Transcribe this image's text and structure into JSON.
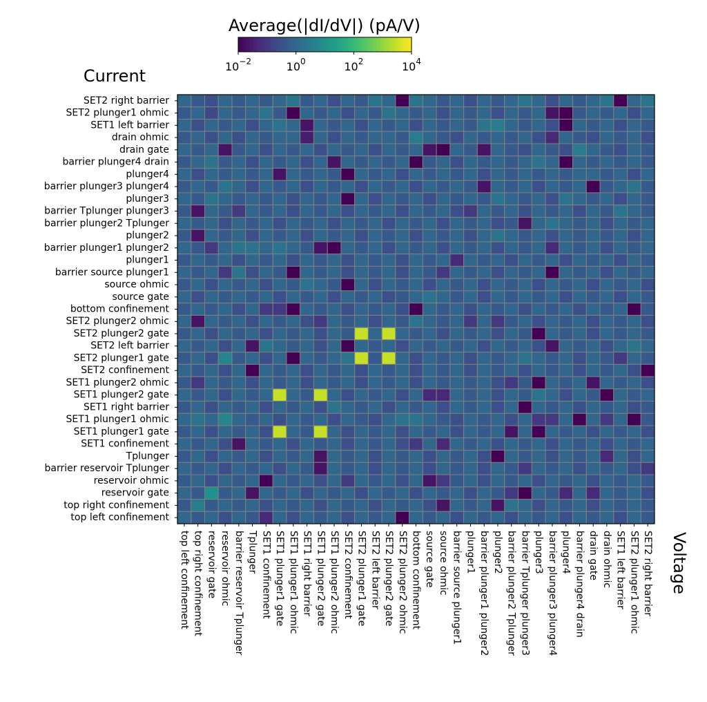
{
  "chart_data": {
    "type": "heatmap",
    "title": "Average(|dI/dV|) (pA/V)",
    "x_label": "Voltage",
    "y_label": "Current",
    "colormap": "viridis",
    "log_scale": true,
    "clim": [
      0.01,
      10000
    ],
    "cticks": [
      {
        "value": 0.01,
        "label": "10^-2"
      },
      {
        "value": 1,
        "label": "10^0"
      },
      {
        "value": 100,
        "label": "10^2"
      },
      {
        "value": 10000,
        "label": "10^4"
      }
    ],
    "x_categories": [
      "top left confinement",
      "top right confinement",
      "reservoir gate",
      "reservoir ohmic",
      "barrier reservoir Tplunger",
      "Tplunger",
      "SET1 confinement",
      "SET1 plunger1 gate",
      "SET1 plunger1 ohmic",
      "SET1 right barrier",
      "SET1 plunger2 gate",
      "SET1 plunger2 ohmic",
      "SET2 confinement",
      "SET2 plunger1 gate",
      "SET2 left barrier",
      "SET2 plunger2 gate",
      "SET2 plunger2 ohmic",
      "bottom confinement",
      "source gate",
      "source ohmic",
      "barrier source plunger1",
      "plunger1",
      "barrier plunger1 plunger2",
      "plunger2",
      "barrier plunger2 Tplunger",
      "barrier Tplunger plunger3",
      "plunger3",
      "barrier plunger3 plunger4",
      "plunger4",
      "barrier plunger4 drain",
      "drain gate",
      "drain ohmic",
      "SET1 left barrier",
      "SET2 plunger1 ohmic",
      "SET2 right barrier"
    ],
    "y_categories": [
      "SET2 right barrier",
      "SET2 plunger1 ohmic",
      "SET1 left barrier",
      "drain ohmic",
      "drain gate",
      "barrier plunger4 drain",
      "plunger4",
      "barrier plunger3 plunger4",
      "plunger3",
      "barrier Tplunger plunger3",
      "barrier plunger2 Tplunger",
      "plunger2",
      "barrier plunger1 plunger2",
      "plunger1",
      "barrier source plunger1",
      "source ohmic",
      "source gate",
      "bottom confinement",
      "SET2 plunger2 ohmic",
      "SET2 plunger2 gate",
      "SET2 left barrier",
      "SET2 plunger1 gate",
      "SET2 confinement",
      "SET1 plunger2 ohmic",
      "SET1 plunger2 gate",
      "SET1 right barrier",
      "SET1 plunger1 ohmic",
      "SET1 plunger1 gate",
      "SET1 confinement",
      "Tplunger",
      "barrier reservoir Tplunger",
      "reservoir ohmic",
      "reservoir gate",
      "top right confinement",
      "top left confinement"
    ],
    "values": [
      [
        1,
        0.5,
        0.3,
        1,
        0.5,
        1,
        0.5,
        1,
        2,
        0.5,
        1,
        0.3,
        1,
        0.5,
        2,
        1,
        0.01,
        2,
        1,
        0.5,
        1,
        0.3,
        1,
        0.5,
        1,
        2,
        1,
        0.3,
        1,
        0.5,
        1,
        2,
        0.01,
        1,
        2
      ],
      [
        0.5,
        1,
        0.2,
        1,
        0.5,
        1,
        2,
        0.5,
        0.01,
        1,
        0.5,
        1,
        0.3,
        1,
        0.5,
        2,
        1,
        0.5,
        1,
        0.3,
        1,
        0.5,
        1,
        0.3,
        1,
        0.5,
        1,
        0.02,
        0.01,
        0.5,
        1,
        0.5,
        1,
        0.3,
        1
      ],
      [
        1,
        0.3,
        1,
        0.5,
        1,
        0.3,
        1,
        2,
        1,
        0.02,
        1,
        0.5,
        1,
        0.3,
        1,
        0.5,
        1,
        0.3,
        1,
        0.5,
        1,
        0.5,
        2,
        3,
        1,
        0.5,
        1,
        0.3,
        0.01,
        1,
        0.5,
        1,
        0.3,
        1,
        0.5
      ],
      [
        0.5,
        1,
        0.3,
        1,
        0.3,
        1,
        0.5,
        1,
        1,
        0.03,
        1,
        0.3,
        1,
        0.5,
        1,
        1,
        0.5,
        3,
        1,
        0.5,
        0.3,
        1,
        0.5,
        1,
        0.5,
        1,
        0.3,
        0.05,
        1,
        0.5,
        0.3,
        1,
        0.5,
        1,
        0.3
      ],
      [
        1,
        0.5,
        1,
        0.02,
        0.5,
        1,
        0.3,
        1,
        0.5,
        1,
        0.3,
        1,
        0.5,
        1,
        0.3,
        1,
        0.5,
        1,
        0.02,
        0.01,
        1,
        0.5,
        0.02,
        1,
        0.5,
        0.3,
        1,
        0.5,
        0.3,
        3,
        1,
        0.5,
        0.3,
        1,
        0.5
      ],
      [
        0.5,
        1,
        2,
        0.5,
        1,
        0.3,
        1,
        0.5,
        1,
        0.3,
        1,
        0.02,
        1,
        0.5,
        1,
        0.5,
        1,
        0.01,
        0.5,
        1,
        0.3,
        1,
        0.5,
        1,
        0.5,
        1,
        2,
        1,
        0.01,
        1,
        0.5,
        1,
        0.5,
        1,
        0.5
      ],
      [
        1,
        0.3,
        1,
        0.5,
        1,
        0.5,
        1,
        0.02,
        1,
        0.5,
        1,
        0.5,
        0.01,
        1,
        0.5,
        1,
        0.3,
        1,
        0.5,
        1,
        0.5,
        1,
        0.3,
        1,
        0.5,
        1,
        0.5,
        1,
        0.5,
        1,
        1,
        0.5,
        1,
        0.3,
        1
      ],
      [
        0.5,
        1,
        0.5,
        2,
        1,
        0.3,
        1,
        0.5,
        1,
        0.3,
        1,
        0.5,
        1,
        0.3,
        1,
        0.5,
        1,
        0.3,
        1,
        0.5,
        1,
        0.5,
        0.02,
        1,
        0.5,
        1,
        0.3,
        1,
        0.5,
        1,
        0.01,
        0.5,
        1,
        2,
        0.5
      ],
      [
        1,
        0.5,
        2,
        1,
        0.5,
        1,
        0.5,
        1,
        0.3,
        1,
        0.5,
        1,
        0.01,
        1,
        0.3,
        1,
        0.5,
        1,
        0.3,
        1,
        0.5,
        1,
        0.5,
        2,
        1,
        0.5,
        1,
        0.3,
        2,
        1,
        0.5,
        1,
        0.3,
        1,
        0.5
      ],
      [
        0.5,
        0.02,
        1,
        0.5,
        0.1,
        1,
        0.5,
        1,
        0.3,
        1,
        0.5,
        1,
        0.3,
        1,
        0.5,
        1,
        0.3,
        1,
        0.5,
        1,
        0.3,
        0.1,
        1,
        0.5,
        1,
        0.3,
        1,
        0.5,
        1,
        0.3,
        1,
        0.5,
        2,
        1,
        0.5
      ],
      [
        1,
        0.5,
        1,
        0.3,
        1,
        0.5,
        1,
        0.3,
        1,
        0.5,
        1,
        0.3,
        1,
        0.5,
        1,
        0.3,
        1,
        0.5,
        1,
        0.3,
        1,
        0.5,
        1,
        0.3,
        0.5,
        0.02,
        1,
        2,
        1,
        0.5,
        1,
        0.3,
        1,
        0.5,
        1
      ],
      [
        0.5,
        0.02,
        1,
        0.5,
        1,
        0.3,
        1,
        0.5,
        1,
        0.3,
        1,
        0.5,
        1,
        0.3,
        1,
        0.5,
        1,
        0.3,
        1,
        0.5,
        1,
        0.3,
        1,
        2,
        1,
        0.5,
        1,
        0.3,
        1,
        0.5,
        1,
        0.5,
        1,
        0.3,
        1
      ],
      [
        1,
        0.5,
        0.1,
        1,
        2,
        2,
        1,
        2,
        1,
        0.5,
        0.02,
        0.01,
        1,
        0.5,
        1,
        0.3,
        1,
        0.5,
        1,
        0.3,
        1,
        0.5,
        1,
        0.3,
        1,
        0.5,
        1,
        0.05,
        1,
        0.5,
        1,
        0.3,
        1,
        0.5,
        1
      ],
      [
        0.5,
        1,
        0.5,
        1,
        0.3,
        1,
        0.5,
        1,
        0.3,
        1,
        0.5,
        1,
        0.3,
        1,
        0.5,
        1,
        0.3,
        1,
        0.5,
        1,
        0.05,
        1,
        0.5,
        1,
        0.3,
        1,
        0.5,
        1,
        0.3,
        1,
        0.5,
        1,
        0.3,
        1,
        0.5
      ],
      [
        1,
        0.5,
        1,
        0.1,
        2,
        0.3,
        1,
        0.5,
        0.01,
        1,
        0.5,
        1,
        0.3,
        1,
        0.5,
        1,
        0.3,
        1,
        0.5,
        0.1,
        1,
        0.5,
        1,
        0.3,
        1,
        0.5,
        1,
        0.01,
        1,
        0.5,
        1,
        0.3,
        1,
        0.5,
        1
      ],
      [
        0.5,
        1,
        0.3,
        1,
        0.5,
        1,
        0.3,
        1,
        0.5,
        2,
        1,
        0.5,
        0.01,
        1,
        0.3,
        1,
        0.5,
        1,
        0.3,
        1,
        0.5,
        1,
        0.3,
        1,
        0.5,
        1,
        0.3,
        1,
        0.5,
        1,
        0.3,
        1,
        0.5,
        1,
        0.3
      ],
      [
        1,
        0.3,
        1,
        0.5,
        1,
        0.5,
        1,
        0.3,
        1,
        0.5,
        1,
        0.3,
        1,
        0.5,
        1,
        0.3,
        0.5,
        1,
        2,
        1,
        0.5,
        1,
        0.3,
        1,
        0.5,
        1,
        0.5,
        1,
        0.3,
        1,
        0.5,
        1,
        0.3,
        1,
        0.5
      ],
      [
        0.5,
        1,
        0.5,
        1,
        0.3,
        1,
        0.1,
        0.1,
        0.01,
        1,
        0.5,
        1,
        0.3,
        1,
        0.5,
        1,
        0.3,
        0.01,
        1,
        0.5,
        1,
        0.3,
        1,
        0.5,
        1,
        0.3,
        1,
        0.5,
        1,
        0.3,
        1,
        0.5,
        1,
        0.01,
        0.5
      ],
      [
        1,
        0.02,
        1,
        0.5,
        1,
        0.3,
        1,
        0.5,
        1,
        0.3,
        0.1,
        1,
        0.5,
        1,
        0.3,
        1,
        0.5,
        2,
        1,
        0.5,
        1,
        0.1,
        1,
        0.1,
        0.5,
        1,
        0.3,
        1,
        0.5,
        1,
        0.3,
        1,
        0.5,
        1,
        0.3
      ],
      [
        0.5,
        1,
        0.3,
        1,
        0.5,
        1,
        0.3,
        1,
        0.5,
        1,
        0.3,
        1,
        0.5,
        3000,
        1,
        3000,
        1,
        0.5,
        1,
        0.3,
        1,
        0.5,
        1,
        0.3,
        1,
        0.5,
        0.01,
        1,
        0.5,
        1,
        0.3,
        1,
        0.5,
        1,
        0.5
      ],
      [
        1,
        0.5,
        1,
        0.3,
        1,
        0.02,
        2,
        1,
        0.5,
        1,
        0.3,
        1,
        0.01,
        1,
        0.5,
        1,
        0.3,
        1,
        0.5,
        1,
        0.5,
        1,
        0.3,
        1,
        0.5,
        1,
        0.3,
        0.02,
        1,
        0.5,
        1,
        0.3,
        1,
        2,
        1
      ],
      [
        0.5,
        1,
        0.3,
        5,
        0.5,
        1,
        0.3,
        1,
        0.01,
        1,
        0.5,
        1,
        2,
        3000,
        0.5,
        3000,
        1,
        0.3,
        1,
        0.5,
        1,
        0.3,
        1,
        0.5,
        1,
        2,
        1,
        0.5,
        1,
        0.3,
        1,
        0.5,
        0.1,
        1,
        0.5
      ],
      [
        1,
        0.5,
        1,
        0.3,
        1,
        0.01,
        1,
        0.5,
        1,
        0.3,
        1,
        0.5,
        1,
        0.3,
        1,
        0.5,
        1,
        0.3,
        1,
        0.5,
        1,
        0.3,
        1,
        0.5,
        1,
        0.3,
        1,
        0.5,
        1,
        0.3,
        1,
        0.5,
        1,
        0.3,
        0.01
      ],
      [
        0.5,
        0.1,
        1,
        0.5,
        1,
        0.3,
        1,
        0.5,
        1,
        0.3,
        1,
        0.5,
        1,
        0.3,
        1,
        0.5,
        1,
        0.3,
        1,
        0.5,
        1,
        0.5,
        1,
        0.3,
        0.1,
        0.5,
        0.01,
        1,
        0.5,
        1,
        0.02,
        1,
        0.5,
        1,
        0.3
      ],
      [
        1,
        0.5,
        1,
        0.3,
        1,
        0.5,
        1,
        3000,
        1,
        0.5,
        3000,
        1,
        0.3,
        1,
        0.5,
        1,
        0.3,
        1,
        0.05,
        0.05,
        1,
        0.5,
        1,
        0.3,
        1,
        0.5,
        2,
        1,
        0.3,
        1,
        0.5,
        0.01,
        1,
        0.5,
        1
      ],
      [
        0.5,
        1,
        0.3,
        1,
        0.5,
        1,
        0.3,
        1,
        0.5,
        1,
        0.3,
        2,
        1,
        0.5,
        1,
        0.3,
        1,
        0.5,
        1,
        0.3,
        1,
        0.5,
        1,
        0.3,
        1,
        0.01,
        1,
        0.5,
        1,
        0.3,
        1,
        0.5,
        1,
        0.3,
        0.5
      ],
      [
        1,
        2,
        1,
        5,
        1,
        0.5,
        1,
        0.3,
        1,
        0.5,
        1,
        0.3,
        1,
        0.5,
        0.3,
        1,
        2,
        2,
        1,
        0.5,
        0.3,
        1,
        0.5,
        1,
        0.3,
        1,
        0.1,
        0.1,
        1,
        0.01,
        1,
        0.1,
        1,
        0.01,
        0.5
      ],
      [
        0.5,
        1,
        0.3,
        1,
        0.5,
        1,
        0.3,
        3000,
        1,
        0.5,
        3000,
        1,
        0.3,
        1,
        0.5,
        1,
        0.3,
        1,
        0.5,
        1,
        0.3,
        1,
        0.5,
        1,
        0.02,
        1,
        0.01,
        1,
        0.5,
        1,
        0.3,
        1,
        0.5,
        1,
        0.3
      ],
      [
        1,
        0.5,
        1,
        0.3,
        0.02,
        1,
        0.5,
        1,
        0.3,
        1,
        0.5,
        1,
        0.3,
        1,
        0.5,
        1,
        0.3,
        0.1,
        1,
        0.05,
        1,
        0.5,
        1,
        0.3,
        1,
        0.5,
        1,
        0.3,
        1,
        0.5,
        1,
        0.3,
        1,
        0.5,
        1
      ],
      [
        0.5,
        1,
        0.3,
        1,
        0.5,
        1,
        0.3,
        1,
        0.5,
        1,
        0.02,
        1,
        0.5,
        1,
        0.3,
        1,
        0.5,
        1,
        0.3,
        1,
        0.5,
        1,
        0.3,
        0.01,
        1,
        0.5,
        1,
        0.3,
        1,
        0.5,
        1,
        0.05,
        1,
        0.3,
        1
      ],
      [
        1,
        0.5,
        1,
        0.3,
        1,
        0.5,
        1,
        0.3,
        1,
        0.5,
        0.02,
        1,
        0.5,
        1,
        0.3,
        1,
        0.5,
        1,
        0.3,
        1,
        0.5,
        1,
        0.3,
        1,
        0.5,
        0.1,
        1,
        0.5,
        1,
        0.3,
        1,
        0.5,
        1,
        0.3,
        0.1
      ],
      [
        0.5,
        1,
        0.3,
        1,
        0.5,
        1,
        0.01,
        1,
        0.5,
        1,
        0.3,
        1,
        0.1,
        1,
        0.5,
        1,
        0.3,
        1,
        0.02,
        0.1,
        0.5,
        1,
        0.3,
        1,
        0.5,
        1,
        0.3,
        1,
        0.5,
        1,
        0.3,
        1,
        0.5,
        1,
        0.5
      ],
      [
        1,
        0.5,
        10,
        0.5,
        1,
        0.02,
        1,
        0.5,
        1,
        0.3,
        1,
        0.5,
        1,
        0.3,
        1,
        0.5,
        1,
        0.3,
        1,
        0.5,
        1,
        0.3,
        1,
        0.5,
        0.1,
        0.01,
        1,
        0.5,
        0.05,
        1,
        0.05,
        1,
        0.5,
        1,
        0.3
      ],
      [
        0.5,
        3,
        0.5,
        1,
        0.5,
        1,
        0.3,
        1,
        0.5,
        1,
        0.3,
        1,
        0.5,
        1,
        0.3,
        1,
        0.5,
        1,
        0.3,
        0.02,
        1,
        0.5,
        1,
        0.02,
        2,
        1,
        0.3,
        1,
        0.5,
        1,
        0.3,
        1,
        0.5,
        1,
        0.5
      ],
      [
        1,
        0.5,
        1,
        0.3,
        1,
        0.5,
        0.05,
        1,
        0.3,
        1,
        0.5,
        1,
        0.3,
        1,
        0.5,
        1,
        0.01,
        1,
        0.5,
        1,
        0.3,
        1,
        0.5,
        1,
        0.3,
        1,
        0.5,
        1,
        0.3,
        1,
        0.5,
        1,
        0.3,
        1,
        0.5
      ]
    ]
  }
}
